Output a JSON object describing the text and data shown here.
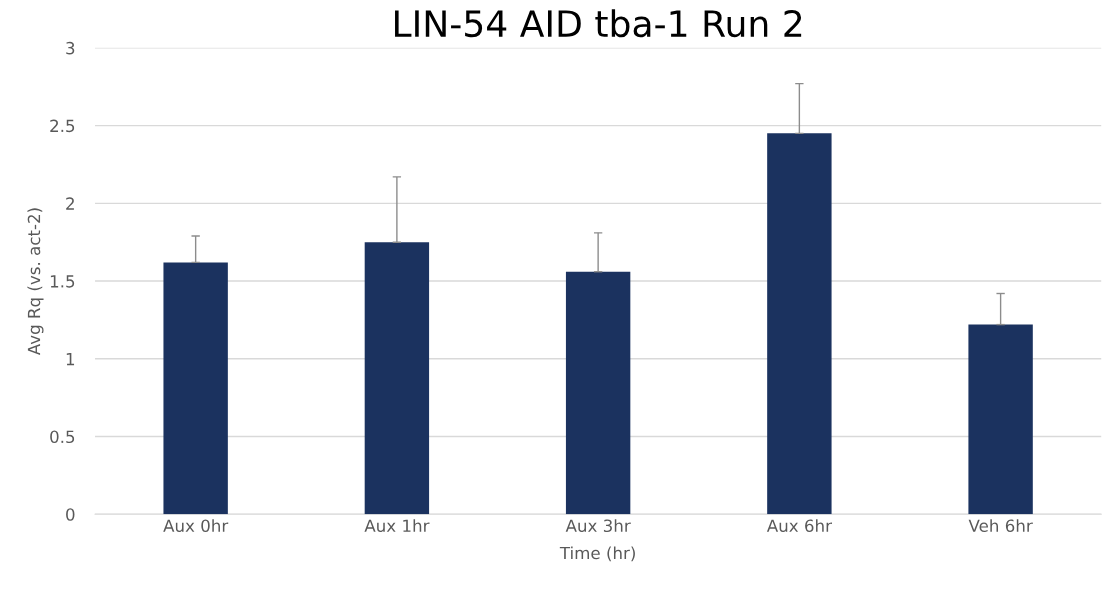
{
  "chart_data": {
    "type": "bar",
    "title": "LIN-54 AID tba-1 Run 2",
    "xlabel": "Time (hr)",
    "ylabel": "Avg Rq (vs. act-2)",
    "categories": [
      "Aux 0hr",
      "Aux 1hr",
      "Aux 3hr",
      "Aux 6hr",
      "Veh 6hr"
    ],
    "values": [
      1.62,
      1.75,
      1.56,
      2.45,
      1.22
    ],
    "errors": [
      [
        1.62,
        1.79
      ],
      [
        1.75,
        2.17
      ],
      [
        1.56,
        1.81
      ],
      [
        2.45,
        2.77
      ],
      [
        1.22,
        1.42
      ]
    ],
    "color": "#1b325f",
    "ylim": [
      0,
      3
    ],
    "yticks": [
      0,
      0.5,
      1,
      1.5,
      2,
      2.5,
      3
    ],
    "grid": "y",
    "legend": false
  }
}
